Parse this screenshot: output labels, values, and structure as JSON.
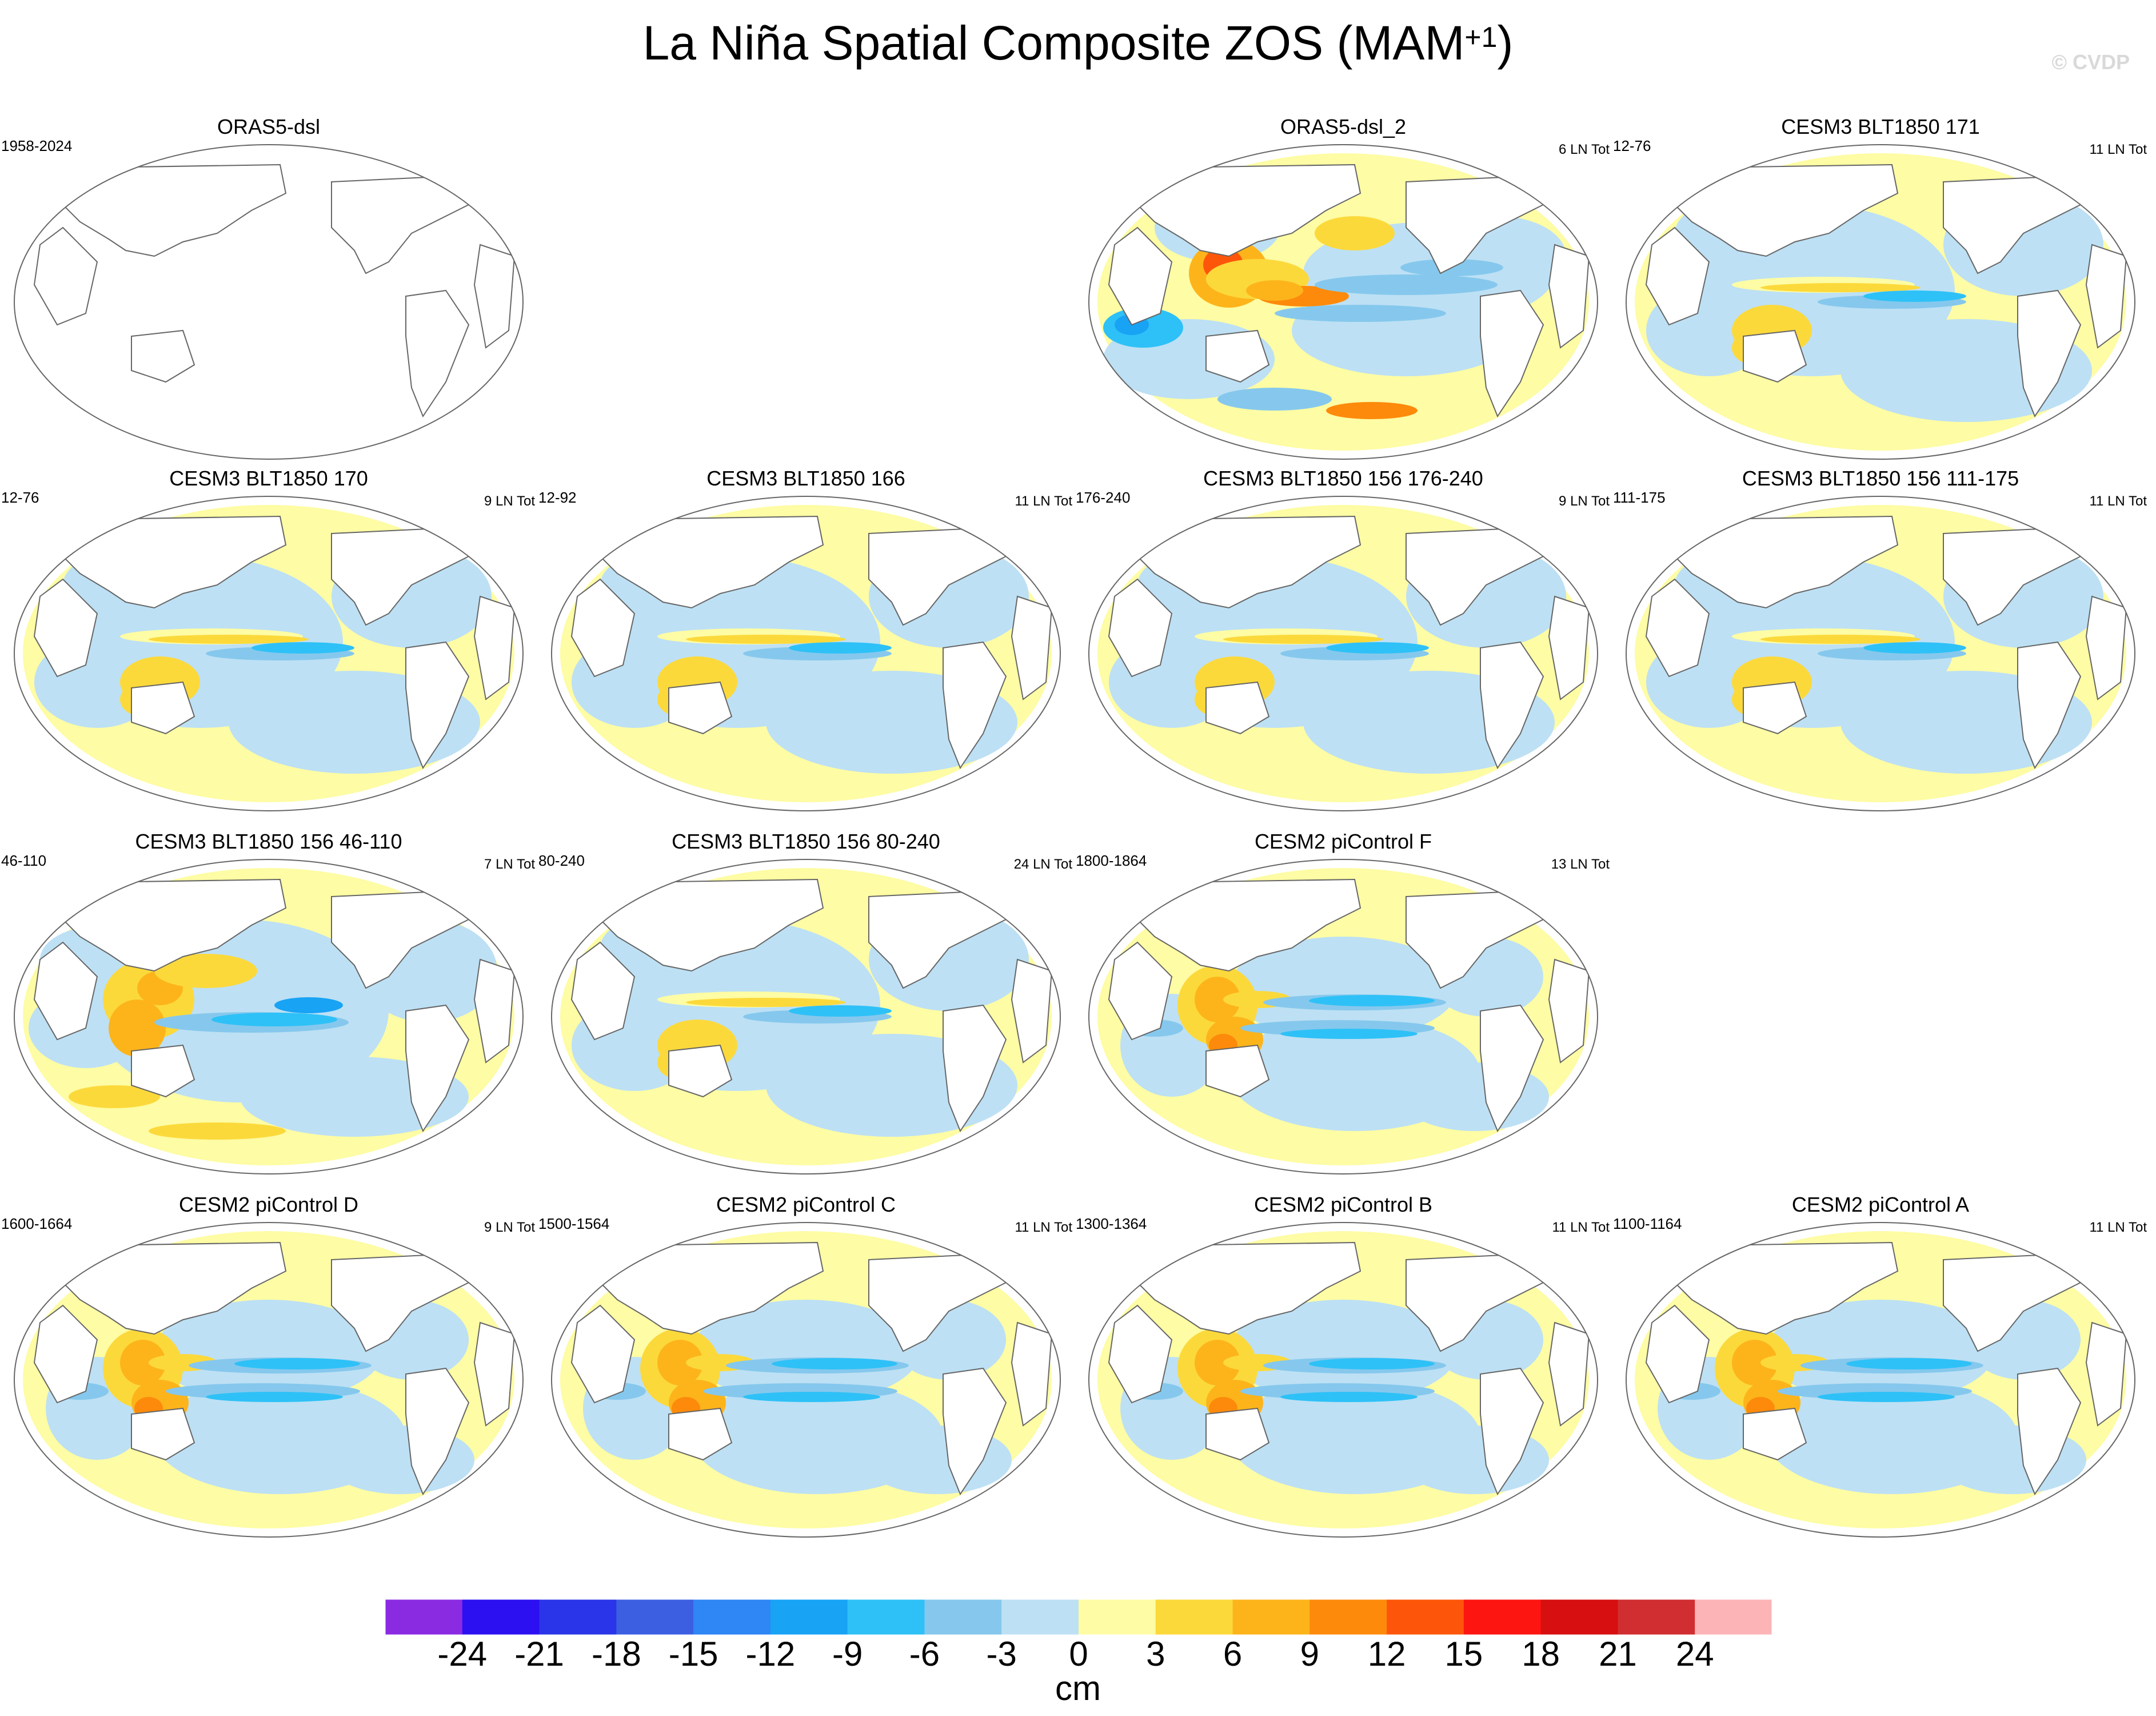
{
  "title": {
    "main": "La Niña Spatial Composite ZOS (MAM",
    "sup": "+1",
    "close": ")"
  },
  "watermark": "© CVDP",
  "panels": [
    {
      "title": "ORAS5-dsl",
      "years": "1958-2024",
      "events": "",
      "pattern": "empty"
    },
    {
      "title": "ORAS5-dsl_2",
      "years": "",
      "events": "6 LN Tot",
      "pattern": "obs"
    },
    {
      "title": "CESM3 BLT1850 171",
      "years": "12-76",
      "events": "11 LN Tot",
      "pattern": "cesm3"
    },
    {
      "title": "CESM3 BLT1850 170",
      "years": "12-76",
      "events": "9 LN Tot",
      "pattern": "cesm3"
    },
    {
      "title": "CESM3 BLT1850 166",
      "years": "12-92",
      "events": "11 LN Tot",
      "pattern": "cesm3"
    },
    {
      "title": "CESM3 BLT1850 156 176-240",
      "years": "176-240",
      "events": "9 LN Tot",
      "pattern": "cesm3"
    },
    {
      "title": "CESM3 BLT1850 156 111-175",
      "years": "111-175",
      "events": "11 LN Tot",
      "pattern": "cesm3"
    },
    {
      "title": "CESM3 BLT1850 156 46-110",
      "years": "46-110",
      "events": "7 LN Tot",
      "pattern": "cesm3strong"
    },
    {
      "title": "CESM3 BLT1850 156 80-240",
      "years": "80-240",
      "events": "24 LN Tot",
      "pattern": "cesm3"
    },
    {
      "title": "CESM2 piControl F",
      "years": "1800-1864",
      "events": "13 LN Tot",
      "pattern": "cesm2"
    },
    {
      "title": "CESM2 piControl D",
      "years": "1600-1664",
      "events": "9 LN Tot",
      "pattern": "cesm2"
    },
    {
      "title": "CESM2 piControl C",
      "years": "1500-1564",
      "events": "11 LN Tot",
      "pattern": "cesm2"
    },
    {
      "title": "CESM2 piControl B",
      "years": "1300-1364",
      "events": "11 LN Tot",
      "pattern": "cesm2"
    },
    {
      "title": "CESM2 piControl A",
      "years": "1100-1164",
      "events": "11 LN Tot",
      "pattern": "cesm2"
    }
  ],
  "chart_data": {
    "type": "heatmap",
    "variable": "ZOS",
    "season": "MAM+1",
    "projection": "Robinson, Pacific-centered",
    "colorbar": {
      "units": "cm",
      "levels": [
        -24,
        -21,
        -18,
        -15,
        -12,
        -9,
        -6,
        -3,
        0,
        3,
        6,
        9,
        12,
        15,
        18,
        21,
        24
      ],
      "colors": [
        "#8a2be2",
        "#2d10f2",
        "#2a34e8",
        "#3c5fe2",
        "#2f86f5",
        "#18a3f5",
        "#2ec1f7",
        "#86c8ed",
        "#bde0f4",
        "#fefca4",
        "#fcd93b",
        "#fdb41b",
        "#fd8a0b",
        "#fd560a",
        "#fd1512",
        "#d70f10",
        "#d02e31",
        "#fcb4b6"
      ]
    },
    "panel_patterns": {
      "obs": "Positive anomalies (red, up to ~15 cm) in the western Pacific warm pool; negative (blue, ~-6 to -12 cm) in central and eastern tropical Pacific and southern Indian Ocean.",
      "cesm3": "Weak pattern: yellow (0-3 cm) western Pacific and narrow equatorial band, light blue (-3 to 0) over most of the Pacific, blue (-6) equatorial eastern Pacific.",
      "cesm3strong": "Orange (6-9 cm) western Pacific and Indonesia, blue (-6 to -9 cm) along central equatorial Pacific.",
      "cesm2": "Orange to red (6-12 cm) western Pacific warm pool, strong blue (-9 to -12 cm) equatorial band in central-eastern Pacific, blue off-equatorial bands in south Pacific."
    }
  }
}
